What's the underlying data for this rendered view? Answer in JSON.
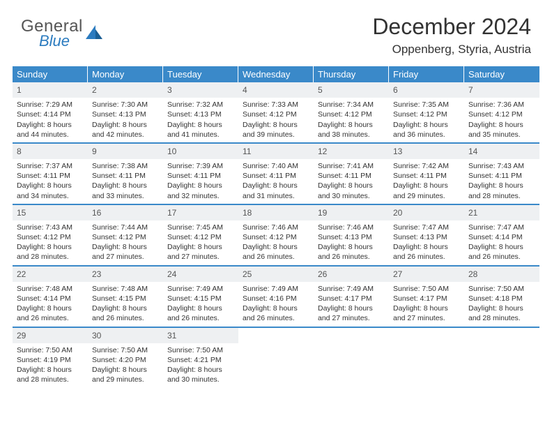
{
  "colors": {
    "header_bg": "#3a89c9",
    "daynum_bg": "#eef0f2",
    "text": "#333333",
    "logo_gray": "#555555",
    "logo_blue": "#2b7bbf"
  },
  "logo": {
    "line1": "General",
    "line2": "Blue"
  },
  "title": "December 2024",
  "location": "Oppenberg, Styria, Austria",
  "day_names": [
    "Sunday",
    "Monday",
    "Tuesday",
    "Wednesday",
    "Thursday",
    "Friday",
    "Saturday"
  ],
  "weeks": [
    [
      {
        "n": "1",
        "sunrise": "Sunrise: 7:29 AM",
        "sunset": "Sunset: 4:14 PM",
        "daylight": "Daylight: 8 hours and 44 minutes."
      },
      {
        "n": "2",
        "sunrise": "Sunrise: 7:30 AM",
        "sunset": "Sunset: 4:13 PM",
        "daylight": "Daylight: 8 hours and 42 minutes."
      },
      {
        "n": "3",
        "sunrise": "Sunrise: 7:32 AM",
        "sunset": "Sunset: 4:13 PM",
        "daylight": "Daylight: 8 hours and 41 minutes."
      },
      {
        "n": "4",
        "sunrise": "Sunrise: 7:33 AM",
        "sunset": "Sunset: 4:12 PM",
        "daylight": "Daylight: 8 hours and 39 minutes."
      },
      {
        "n": "5",
        "sunrise": "Sunrise: 7:34 AM",
        "sunset": "Sunset: 4:12 PM",
        "daylight": "Daylight: 8 hours and 38 minutes."
      },
      {
        "n": "6",
        "sunrise": "Sunrise: 7:35 AM",
        "sunset": "Sunset: 4:12 PM",
        "daylight": "Daylight: 8 hours and 36 minutes."
      },
      {
        "n": "7",
        "sunrise": "Sunrise: 7:36 AM",
        "sunset": "Sunset: 4:12 PM",
        "daylight": "Daylight: 8 hours and 35 minutes."
      }
    ],
    [
      {
        "n": "8",
        "sunrise": "Sunrise: 7:37 AM",
        "sunset": "Sunset: 4:11 PM",
        "daylight": "Daylight: 8 hours and 34 minutes."
      },
      {
        "n": "9",
        "sunrise": "Sunrise: 7:38 AM",
        "sunset": "Sunset: 4:11 PM",
        "daylight": "Daylight: 8 hours and 33 minutes."
      },
      {
        "n": "10",
        "sunrise": "Sunrise: 7:39 AM",
        "sunset": "Sunset: 4:11 PM",
        "daylight": "Daylight: 8 hours and 32 minutes."
      },
      {
        "n": "11",
        "sunrise": "Sunrise: 7:40 AM",
        "sunset": "Sunset: 4:11 PM",
        "daylight": "Daylight: 8 hours and 31 minutes."
      },
      {
        "n": "12",
        "sunrise": "Sunrise: 7:41 AM",
        "sunset": "Sunset: 4:11 PM",
        "daylight": "Daylight: 8 hours and 30 minutes."
      },
      {
        "n": "13",
        "sunrise": "Sunrise: 7:42 AM",
        "sunset": "Sunset: 4:11 PM",
        "daylight": "Daylight: 8 hours and 29 minutes."
      },
      {
        "n": "14",
        "sunrise": "Sunrise: 7:43 AM",
        "sunset": "Sunset: 4:11 PM",
        "daylight": "Daylight: 8 hours and 28 minutes."
      }
    ],
    [
      {
        "n": "15",
        "sunrise": "Sunrise: 7:43 AM",
        "sunset": "Sunset: 4:12 PM",
        "daylight": "Daylight: 8 hours and 28 minutes."
      },
      {
        "n": "16",
        "sunrise": "Sunrise: 7:44 AM",
        "sunset": "Sunset: 4:12 PM",
        "daylight": "Daylight: 8 hours and 27 minutes."
      },
      {
        "n": "17",
        "sunrise": "Sunrise: 7:45 AM",
        "sunset": "Sunset: 4:12 PM",
        "daylight": "Daylight: 8 hours and 27 minutes."
      },
      {
        "n": "18",
        "sunrise": "Sunrise: 7:46 AM",
        "sunset": "Sunset: 4:12 PM",
        "daylight": "Daylight: 8 hours and 26 minutes."
      },
      {
        "n": "19",
        "sunrise": "Sunrise: 7:46 AM",
        "sunset": "Sunset: 4:13 PM",
        "daylight": "Daylight: 8 hours and 26 minutes."
      },
      {
        "n": "20",
        "sunrise": "Sunrise: 7:47 AM",
        "sunset": "Sunset: 4:13 PM",
        "daylight": "Daylight: 8 hours and 26 minutes."
      },
      {
        "n": "21",
        "sunrise": "Sunrise: 7:47 AM",
        "sunset": "Sunset: 4:14 PM",
        "daylight": "Daylight: 8 hours and 26 minutes."
      }
    ],
    [
      {
        "n": "22",
        "sunrise": "Sunrise: 7:48 AM",
        "sunset": "Sunset: 4:14 PM",
        "daylight": "Daylight: 8 hours and 26 minutes."
      },
      {
        "n": "23",
        "sunrise": "Sunrise: 7:48 AM",
        "sunset": "Sunset: 4:15 PM",
        "daylight": "Daylight: 8 hours and 26 minutes."
      },
      {
        "n": "24",
        "sunrise": "Sunrise: 7:49 AM",
        "sunset": "Sunset: 4:15 PM",
        "daylight": "Daylight: 8 hours and 26 minutes."
      },
      {
        "n": "25",
        "sunrise": "Sunrise: 7:49 AM",
        "sunset": "Sunset: 4:16 PM",
        "daylight": "Daylight: 8 hours and 26 minutes."
      },
      {
        "n": "26",
        "sunrise": "Sunrise: 7:49 AM",
        "sunset": "Sunset: 4:17 PM",
        "daylight": "Daylight: 8 hours and 27 minutes."
      },
      {
        "n": "27",
        "sunrise": "Sunrise: 7:50 AM",
        "sunset": "Sunset: 4:17 PM",
        "daylight": "Daylight: 8 hours and 27 minutes."
      },
      {
        "n": "28",
        "sunrise": "Sunrise: 7:50 AM",
        "sunset": "Sunset: 4:18 PM",
        "daylight": "Daylight: 8 hours and 28 minutes."
      }
    ],
    [
      {
        "n": "29",
        "sunrise": "Sunrise: 7:50 AM",
        "sunset": "Sunset: 4:19 PM",
        "daylight": "Daylight: 8 hours and 28 minutes."
      },
      {
        "n": "30",
        "sunrise": "Sunrise: 7:50 AM",
        "sunset": "Sunset: 4:20 PM",
        "daylight": "Daylight: 8 hours and 29 minutes."
      },
      {
        "n": "31",
        "sunrise": "Sunrise: 7:50 AM",
        "sunset": "Sunset: 4:21 PM",
        "daylight": "Daylight: 8 hours and 30 minutes."
      },
      {
        "empty": true
      },
      {
        "empty": true
      },
      {
        "empty": true
      },
      {
        "empty": true
      }
    ]
  ]
}
